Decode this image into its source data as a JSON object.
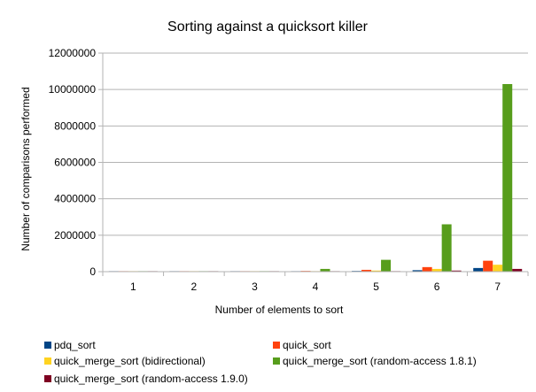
{
  "chart_data": {
    "type": "bar",
    "title": "Sorting against a quicksort killer",
    "xlabel": "Number of elements to sort",
    "ylabel": "Number of comparisons performed",
    "categories": [
      "1",
      "2",
      "3",
      "4",
      "5",
      "6",
      "7"
    ],
    "ylim": [
      0,
      12000000
    ],
    "yticks": [
      0,
      2000000,
      4000000,
      6000000,
      8000000,
      10000000,
      12000000
    ],
    "ytick_labels": [
      "0",
      "2000000",
      "4000000",
      "6000000",
      "8000000",
      "10000000",
      "12000000"
    ],
    "grid": "horizontal",
    "legend_position": "bottom",
    "series": [
      {
        "name": "pdq_sort",
        "color": "#004586",
        "values": [
          100,
          1000,
          5000,
          15000,
          40000,
          80000,
          200000
        ]
      },
      {
        "name": "quick_sort",
        "color": "#ff420e",
        "values": [
          200,
          3000,
          10000,
          40000,
          100000,
          250000,
          600000
        ]
      },
      {
        "name": "quick_merge_sort (bidirectional)",
        "color": "#ffd320",
        "values": [
          150,
          2000,
          8000,
          20000,
          60000,
          150000,
          380000
        ]
      },
      {
        "name": "quick_merge_sort (random-access 1.8.1)",
        "color": "#579d1c",
        "values": [
          300,
          5000,
          30000,
          150000,
          650000,
          2600000,
          10300000
        ]
      },
      {
        "name": "quick_merge_sort (random-access 1.9.0)",
        "color": "#7e0021",
        "values": [
          100,
          1000,
          4000,
          10000,
          30000,
          60000,
          150000
        ]
      }
    ]
  }
}
